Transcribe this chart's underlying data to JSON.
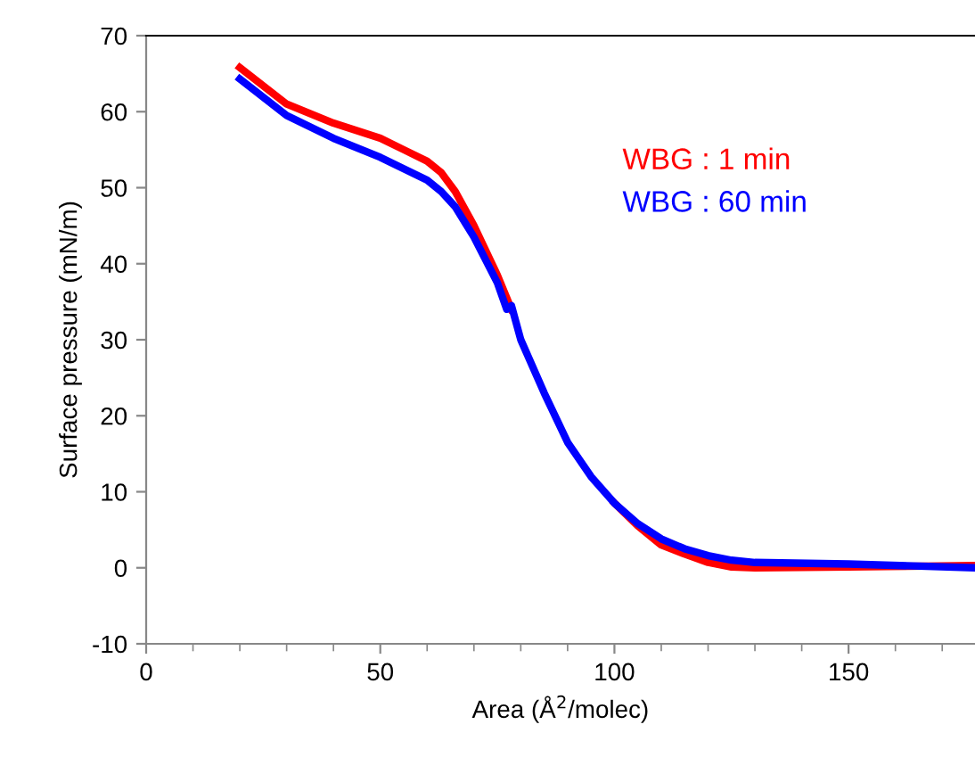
{
  "chart_data": {
    "type": "line",
    "xlabel": "Area (Å$^{2}$/molec)",
    "ylabel": "Surface pressure (mN/m)",
    "xlim": [
      0,
      177
    ],
    "ylim": [
      -10,
      70
    ],
    "xticks": [
      0,
      50,
      100,
      150
    ],
    "yticks": [
      -10,
      0,
      10,
      20,
      30,
      40,
      50,
      60,
      70
    ],
    "grid": false,
    "legend": "top right",
    "marker": "none",
    "line_style": "solid",
    "series": [
      {
        "name": "WBG : 1 min",
        "color": "#ff0000",
        "x": [
          20,
          30,
          40,
          50,
          55,
          60,
          63,
          66,
          70,
          75,
          78,
          80,
          85,
          90,
          95,
          100,
          105,
          110,
          115,
          120,
          125,
          130,
          150,
          177
        ],
        "values": [
          65.8,
          61,
          58.5,
          56.5,
          55,
          53.5,
          52,
          49.5,
          45,
          38.5,
          34,
          null,
          null,
          null,
          null,
          8.5,
          5.5,
          3,
          1.8,
          0.7,
          0.1,
          0,
          0.1,
          0.3
        ]
      },
      {
        "name": "WBG : 60 min",
        "color": "#0000ff",
        "x": [
          20,
          30,
          40,
          50,
          55,
          60,
          63,
          66,
          70,
          75,
          77,
          78,
          80,
          85,
          90,
          95,
          100,
          105,
          110,
          115,
          120,
          125,
          130,
          150,
          177
        ],
        "values": [
          64.3,
          59.5,
          56.5,
          54,
          52.5,
          51,
          49.5,
          47.5,
          43.5,
          37.5,
          34,
          34.5,
          30,
          23,
          16.5,
          12,
          8.5,
          5.8,
          3.8,
          2.5,
          1.6,
          1,
          0.7,
          0.5,
          0
        ]
      }
    ]
  }
}
